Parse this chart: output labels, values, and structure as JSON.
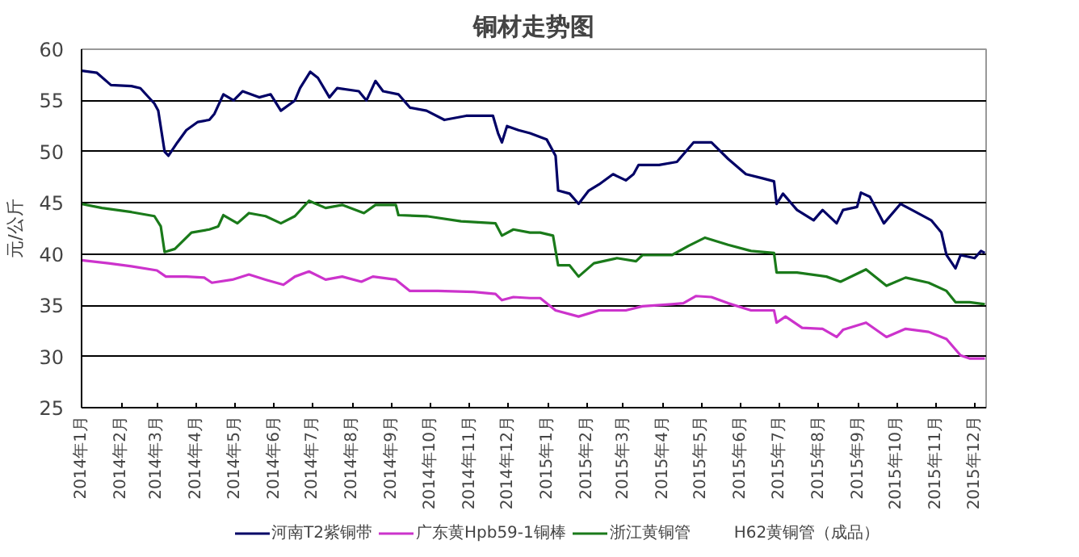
{
  "chart_data": {
    "type": "line",
    "title": "铜材走势图",
    "ylabel": "元/公斤",
    "xlim": [
      "2014-01-01",
      "2015-12-10"
    ],
    "ylim": [
      25,
      60
    ],
    "yticks": [
      25,
      30,
      35,
      40,
      45,
      50,
      55,
      60
    ],
    "xticks": [
      {
        "value": "2014-01",
        "label": "2014年1月"
      },
      {
        "value": "2014-02",
        "label": "2014年2月"
      },
      {
        "value": "2014-03",
        "label": "2014年3月"
      },
      {
        "value": "2014-04",
        "label": "2014年4月"
      },
      {
        "value": "2014-05",
        "label": "2014年5月"
      },
      {
        "value": "2014-06",
        "label": "2014年6月"
      },
      {
        "value": "2014-07",
        "label": "2014年7月"
      },
      {
        "value": "2014-08",
        "label": "2014年8月"
      },
      {
        "value": "2014-09",
        "label": "2014年9月"
      },
      {
        "value": "2014-10",
        "label": "2014年10月"
      },
      {
        "value": "2014-11",
        "label": "2014年11月"
      },
      {
        "value": "2014-12",
        "label": "2014年12月"
      },
      {
        "value": "2015-01",
        "label": "2015年1月"
      },
      {
        "value": "2015-02",
        "label": "2015年2月"
      },
      {
        "value": "2015-03",
        "label": "2015年3月"
      },
      {
        "value": "2015-04",
        "label": "2015年4月"
      },
      {
        "value": "2015-05",
        "label": "2015年5月"
      },
      {
        "value": "2015-06",
        "label": "2015年6月"
      },
      {
        "value": "2015-07",
        "label": "2015年7月"
      },
      {
        "value": "2015-08",
        "label": "2015年8月"
      },
      {
        "value": "2015-09",
        "label": "2015年9月"
      },
      {
        "value": "2015-10",
        "label": "2015年10月"
      },
      {
        "value": "2015-11",
        "label": "2015年11月"
      },
      {
        "value": "2015-12",
        "label": "2015年12月"
      }
    ],
    "grid": "y",
    "legend": "bottom",
    "marker": "none",
    "line_style": "solid",
    "annotations": [
      "H62黄铜管（成品）"
    ],
    "series": [
      {
        "name": "河南T2紫铜带",
        "color": "#000066",
        "x": [
          "2014-01-01",
          "2014-01-13",
          "2014-01-24",
          "2014-02-09",
          "2014-02-16",
          "2014-02-27",
          "2014-03-02",
          "2014-03-07",
          "2014-03-10",
          "2014-03-17",
          "2014-03-24",
          "2014-04-02",
          "2014-04-11",
          "2014-04-15",
          "2014-04-22",
          "2014-04-30",
          "2014-05-07",
          "2014-05-20",
          "2014-05-29",
          "2014-06-06",
          "2014-06-17",
          "2014-06-21",
          "2014-06-29",
          "2014-07-05",
          "2014-07-14",
          "2014-07-20",
          "2014-08-06",
          "2014-08-12",
          "2014-08-19",
          "2014-08-25",
          "2014-09-06",
          "2014-09-15",
          "2014-09-28",
          "2014-10-12",
          "2014-10-29",
          "2014-11-19",
          "2014-11-23",
          "2014-11-26",
          "2014-11-30",
          "2014-12-09",
          "2014-12-18",
          "2014-12-31",
          "2015-01-07",
          "2015-01-09",
          "2015-01-18",
          "2015-01-25",
          "2015-02-02",
          "2015-02-10",
          "2015-02-21",
          "2015-03-03",
          "2015-03-09",
          "2015-03-13",
          "2015-03-29",
          "2015-04-12",
          "2015-04-25",
          "2015-05-09",
          "2015-05-22",
          "2015-06-05",
          "2015-06-18",
          "2015-06-27",
          "2015-06-29",
          "2015-07-04",
          "2015-07-15",
          "2015-07-28",
          "2015-08-04",
          "2015-08-15",
          "2015-08-20",
          "2015-08-31",
          "2015-09-03",
          "2015-09-10",
          "2015-09-21",
          "2015-10-04",
          "2015-10-13",
          "2015-10-28",
          "2015-11-05",
          "2015-11-09",
          "2015-11-16",
          "2015-11-20",
          "2015-12-01",
          "2015-12-06",
          "2015-12-09"
        ],
        "values": [
          57.9,
          57.7,
          56.5,
          56.4,
          56.2,
          54.7,
          54.0,
          50.0,
          49.6,
          50.9,
          52.1,
          52.9,
          53.1,
          53.7,
          55.6,
          55.0,
          55.9,
          55.3,
          55.6,
          54.0,
          55.0,
          56.2,
          57.8,
          57.2,
          55.3,
          56.2,
          55.9,
          55.0,
          56.9,
          55.9,
          55.6,
          54.3,
          54.0,
          53.1,
          53.5,
          53.5,
          51.8,
          50.9,
          52.5,
          52.1,
          51.8,
          51.2,
          49.6,
          46.2,
          45.9,
          44.9,
          46.2,
          46.8,
          47.8,
          47.2,
          47.8,
          48.7,
          48.7,
          49.0,
          50.9,
          50.9,
          49.3,
          47.8,
          47.4,
          47.1,
          44.9,
          45.9,
          44.3,
          43.3,
          44.3,
          43.0,
          44.3,
          44.6,
          46.0,
          45.6,
          43.0,
          44.9,
          44.3,
          43.3,
          42.1,
          39.9,
          38.6,
          39.9,
          39.6,
          40.3,
          40.1
        ]
      },
      {
        "name": "广东黄Hpb59-1铜棒",
        "color": "#cc33cc",
        "x": [
          "2014-01-01",
          "2014-01-22",
          "2014-02-09",
          "2014-03-01",
          "2014-03-08",
          "2014-03-24",
          "2014-04-07",
          "2014-04-13",
          "2014-04-29",
          "2014-05-12",
          "2014-05-25",
          "2014-06-08",
          "2014-06-17",
          "2014-06-28",
          "2014-07-11",
          "2014-07-24",
          "2014-08-08",
          "2014-08-17",
          "2014-09-04",
          "2014-09-15",
          "2014-10-07",
          "2014-11-04",
          "2014-11-21",
          "2014-11-26",
          "2014-12-05",
          "2014-12-18",
          "2014-12-26",
          "2015-01-07",
          "2015-01-25",
          "2015-02-10",
          "2015-03-03",
          "2015-03-16",
          "2015-04-08",
          "2015-04-17",
          "2015-04-27",
          "2015-05-09",
          "2015-05-22",
          "2015-06-09",
          "2015-06-27",
          "2015-06-29",
          "2015-07-06",
          "2015-07-19",
          "2015-08-04",
          "2015-08-15",
          "2015-08-20",
          "2015-09-07",
          "2015-09-23",
          "2015-10-08",
          "2015-10-26",
          "2015-11-09",
          "2015-11-20",
          "2015-11-27",
          "2015-12-09"
        ],
        "values": [
          39.4,
          39.1,
          38.8,
          38.4,
          37.8,
          37.8,
          37.7,
          37.2,
          37.5,
          38.0,
          37.5,
          37.0,
          37.8,
          38.3,
          37.5,
          37.8,
          37.3,
          37.8,
          37.5,
          36.4,
          36.4,
          36.3,
          36.1,
          35.5,
          35.8,
          35.7,
          35.7,
          34.5,
          33.9,
          34.5,
          34.5,
          34.9,
          35.1,
          35.2,
          35.9,
          35.8,
          35.2,
          34.5,
          34.5,
          33.3,
          33.9,
          32.8,
          32.7,
          31.9,
          32.6,
          33.3,
          31.9,
          32.7,
          32.4,
          31.7,
          30.1,
          29.8,
          29.8
        ]
      },
      {
        "name": "浙江黄铜管",
        "color": "#1a7a1a",
        "x": [
          "2014-01-01",
          "2014-01-17",
          "2014-02-09",
          "2014-02-27",
          "2014-03-04",
          "2014-03-07",
          "2014-03-15",
          "2014-03-28",
          "2014-04-11",
          "2014-04-18",
          "2014-04-22",
          "2014-05-03",
          "2014-05-12",
          "2014-05-25",
          "2014-06-06",
          "2014-06-17",
          "2014-06-28",
          "2014-07-11",
          "2014-07-24",
          "2014-08-10",
          "2014-08-19",
          "2014-09-04",
          "2014-09-06",
          "2014-09-28",
          "2014-10-25",
          "2014-11-21",
          "2014-11-26",
          "2014-12-05",
          "2014-12-18",
          "2014-12-26",
          "2015-01-05",
          "2015-01-09",
          "2015-01-18",
          "2015-01-25",
          "2015-02-06",
          "2015-02-24",
          "2015-03-11",
          "2015-03-16",
          "2015-04-08",
          "2015-04-21",
          "2015-05-04",
          "2015-05-22",
          "2015-06-09",
          "2015-06-27",
          "2015-06-29",
          "2015-07-15",
          "2015-08-07",
          "2015-08-18",
          "2015-09-07",
          "2015-09-23",
          "2015-10-08",
          "2015-10-26",
          "2015-11-09",
          "2015-11-16",
          "2015-11-27",
          "2015-12-09"
        ],
        "values": [
          44.9,
          44.5,
          44.1,
          43.7,
          42.7,
          40.2,
          40.5,
          42.1,
          42.4,
          42.7,
          43.8,
          43.0,
          44.0,
          43.7,
          43.0,
          43.7,
          45.2,
          44.5,
          44.8,
          44.0,
          44.8,
          44.8,
          43.8,
          43.7,
          43.2,
          43.0,
          41.8,
          42.4,
          42.1,
          42.1,
          41.8,
          38.9,
          38.9,
          37.8,
          39.1,
          39.6,
          39.3,
          39.9,
          39.9,
          40.8,
          41.6,
          40.9,
          40.3,
          40.1,
          38.2,
          38.2,
          37.8,
          37.3,
          38.5,
          36.9,
          37.7,
          37.2,
          36.4,
          35.3,
          35.3,
          35.1
        ]
      }
    ]
  }
}
